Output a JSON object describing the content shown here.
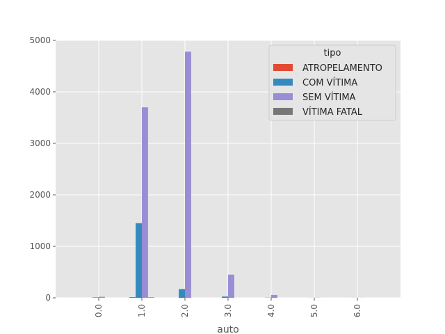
{
  "chart_data": {
    "type": "bar",
    "xlabel": "auto",
    "ylabel": "",
    "ylim": [
      0,
      5000
    ],
    "yticks": [
      0,
      1000,
      2000,
      3000,
      4000,
      5000
    ],
    "grid": true,
    "legend_title": "tipo",
    "legend_position": "top-right",
    "categories": [
      "0.0",
      "1.0",
      "2.0",
      "3.0",
      "4.0",
      "5.0",
      "6.0"
    ],
    "series": [
      {
        "name": "ATROPELAMENTO",
        "color": "#E24A33",
        "values": [
          0,
          12,
          0,
          0,
          0,
          0,
          0
        ]
      },
      {
        "name": "COM VÍTIMA",
        "color": "#348ABD",
        "values": [
          8,
          1450,
          170,
          25,
          3,
          1,
          1
        ]
      },
      {
        "name": "SEM VÍTIMA",
        "color": "#988ED5",
        "values": [
          20,
          3700,
          4780,
          450,
          55,
          2,
          1
        ]
      },
      {
        "name": "VÍTIMA FATAL",
        "color": "#777777",
        "values": [
          0,
          8,
          0,
          0,
          0,
          0,
          0
        ]
      }
    ]
  }
}
